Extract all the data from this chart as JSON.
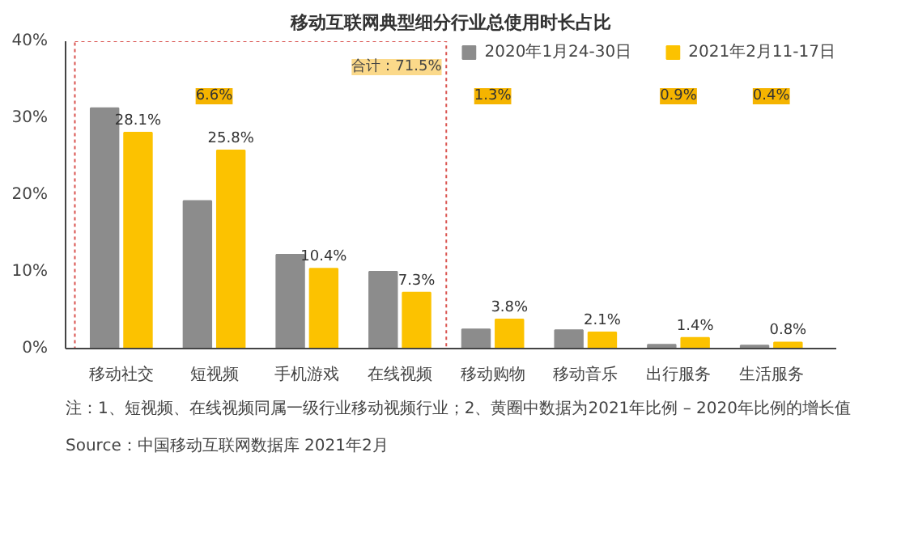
{
  "chart_data": {
    "type": "bar",
    "title": "移动互联网典型细分行业总使用时长占比",
    "categories": [
      "移动社交",
      "短视频",
      "手机游戏",
      "在线视频",
      "移动购物",
      "移动音乐",
      "出行服务",
      "生活服务"
    ],
    "series": [
      {
        "name": "2020年1月24-30日",
        "color": "#8c8c8c",
        "values": [
          31.3,
          19.2,
          12.2,
          10.0,
          2.5,
          2.4,
          0.5,
          0.4
        ]
      },
      {
        "name": "2021年2月11-17日",
        "color": "#fcc200",
        "values": [
          28.1,
          25.8,
          10.4,
          7.3,
          3.8,
          2.1,
          1.4,
          0.8
        ],
        "value_labels": [
          "28.1%",
          "25.8%",
          "10.4%",
          "7.3%",
          "3.8%",
          "2.1%",
          "1.4%",
          "0.8%"
        ]
      }
    ],
    "ylim": [
      0,
      40
    ],
    "yticks": [
      {
        "value": 0,
        "label": "0%"
      },
      {
        "value": 10,
        "label": "10%"
      },
      {
        "value": 20,
        "label": "20%"
      },
      {
        "value": 30,
        "label": "30%"
      },
      {
        "value": 40,
        "label": "40%"
      }
    ],
    "grid": false,
    "legend": "top right",
    "annotations": [
      "合计：71.5%",
      {
        "text": "6.6%",
        "x": "短视频"
      },
      {
        "text": "1.3%",
        "x": "移动购物"
      },
      {
        "text": "0.9%",
        "x": "出行服务"
      },
      {
        "text": "0.4%",
        "x": "生活服务"
      },
      "注：1、短视频、在线视频同属一级行业移动视频行业；2、黄圈中数据为2021年比例 – 2020年比例的增长值",
      "Source：中国移动互联网数据库 2021年2月"
    ]
  }
}
